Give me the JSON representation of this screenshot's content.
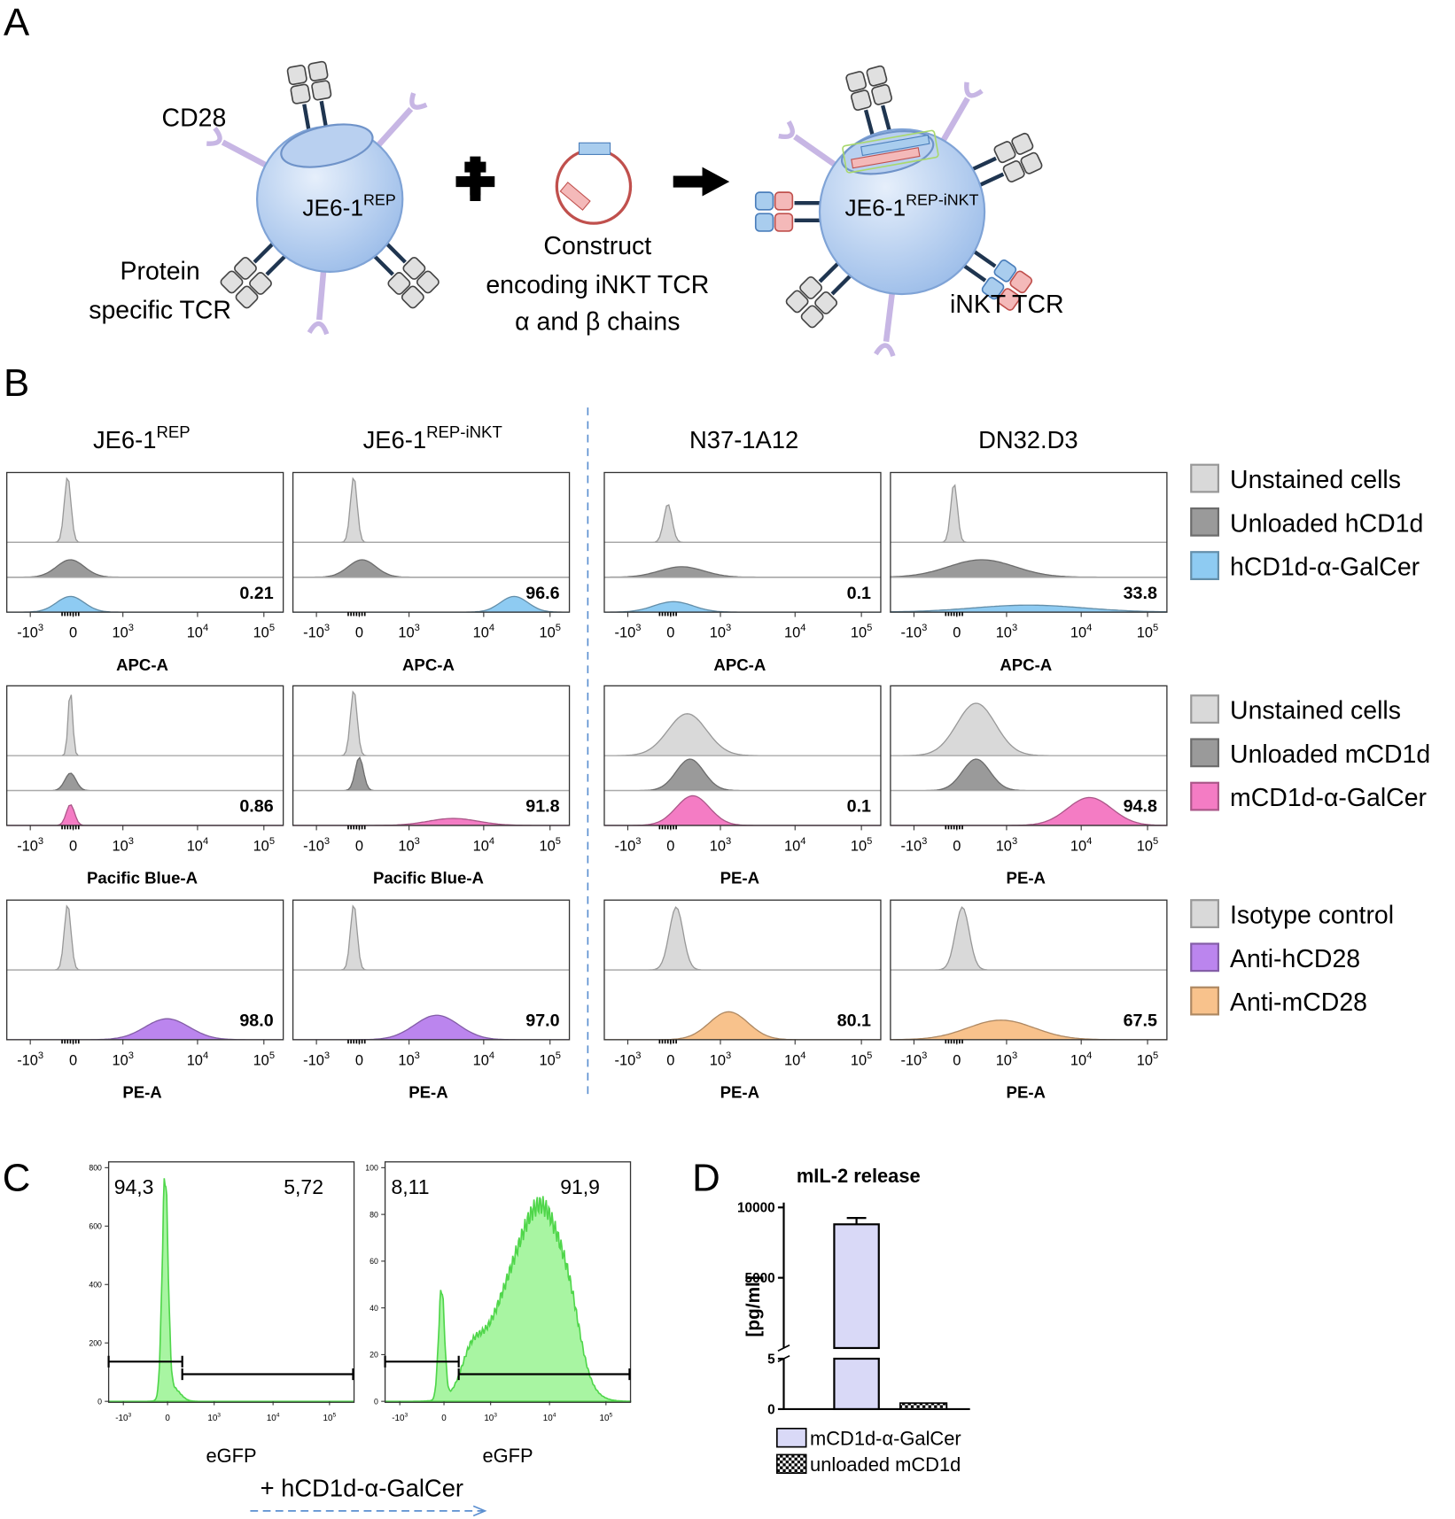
{
  "panel_labels": [
    "A",
    "B",
    "C",
    "D"
  ],
  "panel_a": {
    "cd28": "CD28",
    "cell_left": {
      "base": "JE6-1",
      "sup": "REP"
    },
    "protein_tcr": [
      "Protein",
      "specific TCR"
    ],
    "construct": [
      "Construct",
      "encoding iNKT TCR",
      "α and β chains"
    ],
    "cell_right": {
      "base": "JE6-1",
      "sup": "REP-iNKT"
    },
    "inkt_tcr": "iNKT TCR"
  },
  "panel_b": {
    "columns": [
      {
        "base": "JE6-1",
        "sup": "REP"
      },
      {
        "base": "JE6-1",
        "sup": "REP-iNKT"
      },
      {
        "base": "N37-1A12"
      },
      {
        "base": "DN32.D3"
      }
    ],
    "x_ticks": [
      {
        "base": "-10",
        "sup": "3"
      },
      {
        "base": "0"
      },
      {
        "base": "10",
        "sup": "3"
      },
      {
        "base": "10",
        "sup": "4"
      },
      {
        "base": "10",
        "sup": "5"
      }
    ],
    "rows": [
      {
        "axis_labels": [
          "APC-A",
          "APC-A",
          "APC-A",
          "APC-A"
        ],
        "percentages": [
          "0.21",
          "96.6",
          "0.1",
          "33.8"
        ],
        "legend": [
          {
            "label": "Unstained cells",
            "color": "#d9d9d9"
          },
          {
            "label": "Unloaded hCD1d",
            "color": "#9a9a9a"
          },
          {
            "label": "hCD1d-α-GalCer",
            "color": "#8ecbf2"
          }
        ]
      },
      {
        "axis_labels": [
          "Pacific Blue-A",
          "Pacific Blue-A",
          "PE-A",
          "PE-A"
        ],
        "percentages": [
          "0.86",
          "91.8",
          "0.1",
          "94.8"
        ],
        "legend": [
          {
            "label": "Unstained cells",
            "color": "#d9d9d9"
          },
          {
            "label": "Unloaded mCD1d",
            "color": "#9a9a9a"
          },
          {
            "label": "mCD1d-α-GalCer",
            "color": "#f47cc4"
          }
        ]
      },
      {
        "axis_labels": [
          "PE-A",
          "PE-A",
          "PE-A",
          "PE-A"
        ],
        "percentages": [
          "98.0",
          "97.0",
          "80.1",
          "67.5"
        ],
        "legend": [
          {
            "label": "Isotype control",
            "color": "#d9d9d9"
          },
          {
            "label": "Anti-hCD28",
            "color": "#bb85ee"
          },
          {
            "label": "Anti-mCD28",
            "color": "#f8c28c"
          }
        ]
      }
    ]
  },
  "panel_c": {
    "axis_label": "eGFP",
    "caption": "+ hCD1d-α-GalCer",
    "plots": [
      {
        "gates": [
          "94,3",
          "5,72"
        ],
        "ylim": [
          0,
          800
        ],
        "yticks": [
          0,
          200,
          400,
          600,
          800
        ]
      },
      {
        "gates": [
          "8,11",
          "91,9"
        ],
        "ylim": [
          0,
          100
        ],
        "yticks": [
          0,
          20,
          40,
          60,
          80,
          100
        ]
      }
    ]
  },
  "chart_data": {
    "type": "bar",
    "title": "mIL-2 release",
    "y_label": "[pg/ml]",
    "series": [
      {
        "name": "mCD1d-α-GalCer",
        "color": "#d9d9f7",
        "values": [
          8800
        ],
        "errors": [
          450
        ]
      },
      {
        "name": "unloaded mCD1d",
        "color": "#000000",
        "values": [
          0.6
        ]
      }
    ],
    "ylim_lower": [
      0,
      5
    ],
    "yticks_lower": [
      0,
      5
    ],
    "ylim_upper": [
      5,
      10000
    ],
    "yticks_upper": [
      5000,
      10000
    ]
  }
}
